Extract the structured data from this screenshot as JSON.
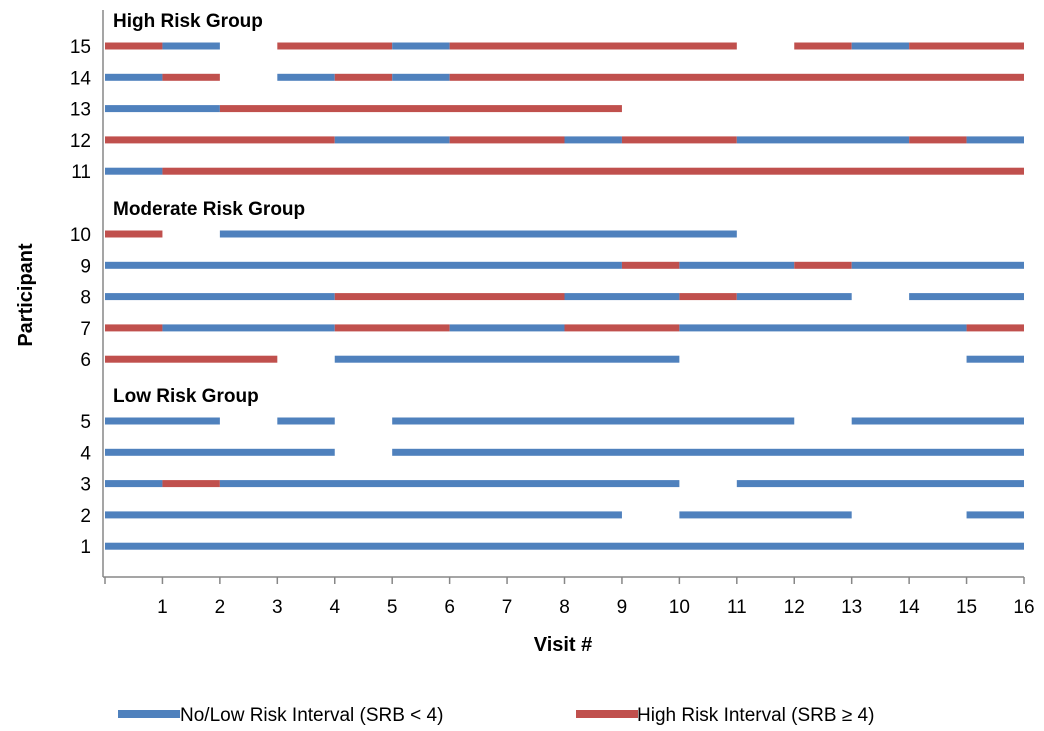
{
  "chart_data": {
    "type": "bar",
    "xlabel": "Visit #",
    "ylabel": "Participant",
    "xlim": [
      0,
      16
    ],
    "x_ticks": [
      "1",
      "2",
      "3",
      "4",
      "5",
      "6",
      "7",
      "8",
      "9",
      "10",
      "11",
      "12",
      "13",
      "14",
      "15",
      "16"
    ],
    "grid": false,
    "legend_position": "bottom",
    "colors": {
      "low": "#4F81BD",
      "high": "#C0504D"
    },
    "legend": [
      {
        "key": "low",
        "label": "No/Low Risk Interval (SRB < 4)"
      },
      {
        "key": "high",
        "label": "High Risk Interval (SRB ≥ 4)"
      }
    ],
    "groups": [
      {
        "title": "High Risk Group",
        "participants": [
          {
            "id": "15",
            "segments": [
              [
                0,
                1,
                "high"
              ],
              [
                1,
                2,
                "low"
              ],
              [
                3,
                5,
                "high"
              ],
              [
                5,
                6,
                "low"
              ],
              [
                6,
                11,
                "high"
              ],
              [
                12,
                13,
                "high"
              ],
              [
                13,
                14,
                "low"
              ],
              [
                14,
                16,
                "high"
              ]
            ]
          },
          {
            "id": "14",
            "segments": [
              [
                0,
                1,
                "low"
              ],
              [
                1,
                2,
                "high"
              ],
              [
                3,
                4,
                "low"
              ],
              [
                4,
                5,
                "high"
              ],
              [
                5,
                6,
                "low"
              ],
              [
                6,
                16,
                "high"
              ]
            ]
          },
          {
            "id": "13",
            "segments": [
              [
                0,
                2,
                "low"
              ],
              [
                2,
                9,
                "high"
              ]
            ]
          },
          {
            "id": "12",
            "segments": [
              [
                0,
                4,
                "high"
              ],
              [
                4,
                6,
                "low"
              ],
              [
                6,
                8,
                "high"
              ],
              [
                8,
                9,
                "low"
              ],
              [
                9,
                11,
                "high"
              ],
              [
                11,
                14,
                "low"
              ],
              [
                14,
                15,
                "high"
              ],
              [
                15,
                16,
                "low"
              ]
            ]
          },
          {
            "id": "11",
            "segments": [
              [
                0,
                1,
                "low"
              ],
              [
                1,
                16,
                "high"
              ]
            ]
          }
        ]
      },
      {
        "title": "Moderate Risk Group",
        "participants": [
          {
            "id": "10",
            "segments": [
              [
                0,
                1,
                "high"
              ],
              [
                2,
                11,
                "low"
              ]
            ]
          },
          {
            "id": "9",
            "segments": [
              [
                0,
                9,
                "low"
              ],
              [
                9,
                10,
                "high"
              ],
              [
                10,
                12,
                "low"
              ],
              [
                12,
                13,
                "high"
              ],
              [
                13,
                16,
                "low"
              ]
            ]
          },
          {
            "id": "8",
            "segments": [
              [
                0,
                4,
                "low"
              ],
              [
                4,
                8,
                "high"
              ],
              [
                8,
                10,
                "low"
              ],
              [
                10,
                11,
                "high"
              ],
              [
                11,
                13,
                "low"
              ],
              [
                14,
                16,
                "low"
              ]
            ]
          },
          {
            "id": "7",
            "segments": [
              [
                0,
                1,
                "high"
              ],
              [
                1,
                4,
                "low"
              ],
              [
                4,
                6,
                "high"
              ],
              [
                6,
                8,
                "low"
              ],
              [
                8,
                10,
                "high"
              ],
              [
                10,
                15,
                "low"
              ],
              [
                15,
                16,
                "high"
              ]
            ]
          },
          {
            "id": "6",
            "segments": [
              [
                0,
                3,
                "high"
              ],
              [
                4,
                10,
                "low"
              ],
              [
                15,
                16,
                "low"
              ]
            ]
          }
        ]
      },
      {
        "title": "Low Risk Group",
        "participants": [
          {
            "id": "5",
            "segments": [
              [
                0,
                2,
                "low"
              ],
              [
                3,
                4,
                "low"
              ],
              [
                5,
                12,
                "low"
              ],
              [
                13,
                16,
                "low"
              ]
            ]
          },
          {
            "id": "4",
            "segments": [
              [
                0,
                4,
                "low"
              ],
              [
                5,
                16,
                "low"
              ]
            ]
          },
          {
            "id": "3",
            "segments": [
              [
                0,
                1,
                "low"
              ],
              [
                1,
                2,
                "high"
              ],
              [
                2,
                10,
                "low"
              ],
              [
                11,
                16,
                "low"
              ]
            ]
          },
          {
            "id": "2",
            "segments": [
              [
                0,
                9,
                "low"
              ],
              [
                10,
                13,
                "low"
              ],
              [
                15,
                16,
                "low"
              ]
            ]
          },
          {
            "id": "1",
            "segments": [
              [
                0,
                16,
                "low"
              ]
            ]
          }
        ]
      }
    ]
  }
}
